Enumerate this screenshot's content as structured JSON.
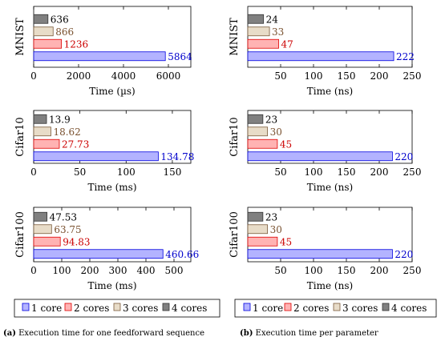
{
  "chart_data": [
    {
      "type": "bar",
      "orientation": "horizontal",
      "panel": "a",
      "ylabel": "MNIST",
      "xlabel": "Time (µs)",
      "xlim": [
        0,
        7000
      ],
      "xticks": [
        0,
        2000,
        4000,
        6000
      ],
      "series": [
        {
          "name": "1 core",
          "value": 5864,
          "label": "5864"
        },
        {
          "name": "2 cores",
          "value": 1236,
          "label": "1236"
        },
        {
          "name": "3 cores",
          "value": 866,
          "label": "866"
        },
        {
          "name": "4 cores",
          "value": 636,
          "label": "636"
        }
      ]
    },
    {
      "type": "bar",
      "orientation": "horizontal",
      "panel": "a",
      "ylabel": "Cifar10",
      "xlabel": "Time (ms)",
      "xlim": [
        0,
        170
      ],
      "xticks": [
        0,
        50,
        100,
        150
      ],
      "series": [
        {
          "name": "1 core",
          "value": 134.78,
          "label": "134.78"
        },
        {
          "name": "2 cores",
          "value": 27.73,
          "label": "27.73"
        },
        {
          "name": "3 cores",
          "value": 18.62,
          "label": "18.62"
        },
        {
          "name": "4 cores",
          "value": 13.9,
          "label": "13.9"
        }
      ]
    },
    {
      "type": "bar",
      "orientation": "horizontal",
      "panel": "a",
      "ylabel": "Cifar100",
      "xlabel": "Time (ms)",
      "xlim": [
        0,
        560
      ],
      "xticks": [
        0,
        100,
        200,
        300,
        400,
        500
      ],
      "series": [
        {
          "name": "1 core",
          "value": 460.66,
          "label": "460.66"
        },
        {
          "name": "2 cores",
          "value": 94.83,
          "label": "94.83"
        },
        {
          "name": "3 cores",
          "value": 63.75,
          "label": "63.75"
        },
        {
          "name": "4 cores",
          "value": 47.53,
          "label": "47.53"
        }
      ]
    },
    {
      "type": "bar",
      "orientation": "horizontal",
      "panel": "b",
      "ylabel": "MNIST",
      "xlabel": "Time (ns)",
      "xlim": [
        0,
        250
      ],
      "xticks": [
        50,
        100,
        150,
        200,
        250
      ],
      "series": [
        {
          "name": "1 core",
          "value": 222,
          "label": "222"
        },
        {
          "name": "2 cores",
          "value": 47,
          "label": "47"
        },
        {
          "name": "3 cores",
          "value": 33,
          "label": "33"
        },
        {
          "name": "4 cores",
          "value": 24,
          "label": "24"
        }
      ]
    },
    {
      "type": "bar",
      "orientation": "horizontal",
      "panel": "b",
      "ylabel": "Cifar10",
      "xlabel": "Time (ns)",
      "xlim": [
        0,
        250
      ],
      "xticks": [
        50,
        100,
        150,
        200,
        250
      ],
      "series": [
        {
          "name": "1 core",
          "value": 220,
          "label": "220"
        },
        {
          "name": "2 cores",
          "value": 45,
          "label": "45"
        },
        {
          "name": "3 cores",
          "value": 30,
          "label": "30"
        },
        {
          "name": "4 cores",
          "value": 23,
          "label": "23"
        }
      ]
    },
    {
      "type": "bar",
      "orientation": "horizontal",
      "panel": "b",
      "ylabel": "Cifar100",
      "xlabel": "Time (ns)",
      "xlim": [
        0,
        250
      ],
      "xticks": [
        50,
        100,
        150,
        200,
        250
      ],
      "series": [
        {
          "name": "1 core",
          "value": 220,
          "label": "220"
        },
        {
          "name": "2 cores",
          "value": 45,
          "label": "45"
        },
        {
          "name": "3 cores",
          "value": 30,
          "label": "30"
        },
        {
          "name": "4 cores",
          "value": 23,
          "label": "23"
        }
      ]
    }
  ],
  "legend": [
    {
      "name": "1 core",
      "fill": "#b3b3ff",
      "stroke": "#0000e0",
      "text": "#0000cc"
    },
    {
      "name": "2 cores",
      "fill": "#ffb3b3",
      "stroke": "#e00000",
      "text": "#cc0000"
    },
    {
      "name": "3 cores",
      "fill": "#e8dcc8",
      "stroke": "#7a5a3a",
      "text": "#7a5230"
    },
    {
      "name": "4 cores",
      "fill": "#808080",
      "stroke": "#333333",
      "text": "#000000"
    }
  ],
  "captions": {
    "a_tag": "(a)",
    "a_text": " Execution time for one feedforward sequence",
    "b_tag": "(b)",
    "b_text": " Execution time per parameter"
  }
}
